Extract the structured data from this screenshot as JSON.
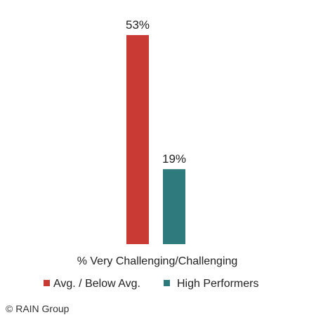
{
  "chart_data": {
    "type": "bar",
    "categories": [
      "Avg. / Below Avg.",
      "High Performers"
    ],
    "values": [
      53,
      19
    ],
    "value_labels": [
      "53%",
      "19%"
    ],
    "colors": [
      "#c93a35",
      "#2e7a7c"
    ],
    "xlabel": "% Very Challenging/Challenging",
    "ylim": [
      0,
      55
    ],
    "grid": false,
    "legend_position": "bottom"
  },
  "footer": {
    "copyright": "© RAIN Group"
  }
}
